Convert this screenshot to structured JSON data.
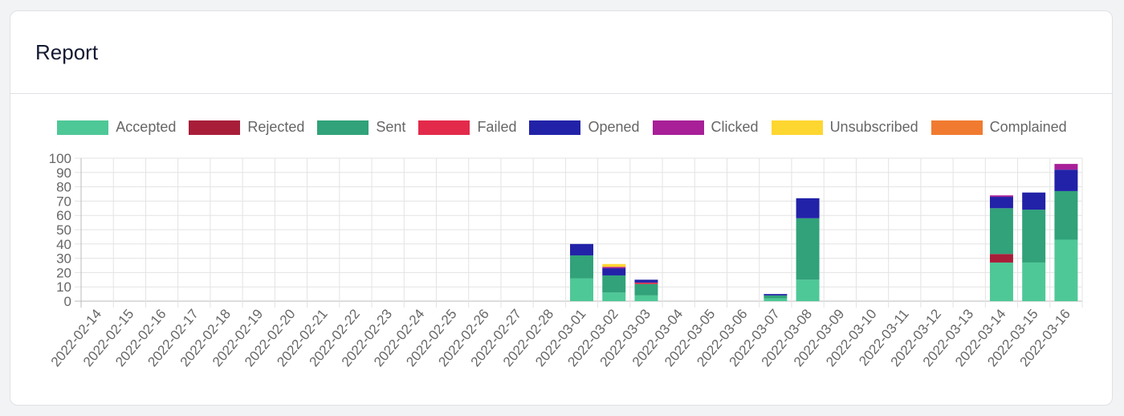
{
  "card": {
    "title": "Report"
  },
  "legend": [
    {
      "label": "Accepted",
      "color": "#4ec897"
    },
    {
      "label": "Rejected",
      "color": "#a81e39"
    },
    {
      "label": "Sent",
      "color": "#31a27a"
    },
    {
      "label": "Failed",
      "color": "#e32a4b"
    },
    {
      "label": "Opened",
      "color": "#2222a8"
    },
    {
      "label": "Clicked",
      "color": "#a81f98"
    },
    {
      "label": "Unsubscribed",
      "color": "#fed630"
    },
    {
      "label": "Complained",
      "color": "#f07b30"
    }
  ],
  "chart_data": {
    "type": "bar",
    "stacked": true,
    "title": "Report",
    "xlabel": "",
    "ylabel": "",
    "ylim": [
      0,
      100
    ],
    "yticks": [
      0,
      10,
      20,
      30,
      40,
      50,
      60,
      70,
      80,
      90,
      100
    ],
    "grid": true,
    "legend_position": "top",
    "categories": [
      "2022-02-14",
      "2022-02-15",
      "2022-02-16",
      "2022-02-17",
      "2022-02-18",
      "2022-02-19",
      "2022-02-20",
      "2022-02-21",
      "2022-02-22",
      "2022-02-23",
      "2022-02-24",
      "2022-02-25",
      "2022-02-26",
      "2022-02-27",
      "2022-02-28",
      "2022-03-01",
      "2022-03-02",
      "2022-03-03",
      "2022-03-04",
      "2022-03-05",
      "2022-03-06",
      "2022-03-07",
      "2022-03-08",
      "2022-03-09",
      "2022-03-10",
      "2022-03-11",
      "2022-03-12",
      "2022-03-13",
      "2022-03-14",
      "2022-03-15",
      "2022-03-16"
    ],
    "series": [
      {
        "name": "Accepted",
        "color": "#4ec897",
        "values": [
          0,
          0,
          0,
          0,
          0,
          0,
          0,
          0,
          0,
          0,
          0,
          0,
          0,
          0,
          0,
          16,
          6,
          4,
          0,
          0,
          0,
          2,
          15,
          0,
          0,
          0,
          0,
          0,
          27,
          27,
          43
        ]
      },
      {
        "name": "Rejected",
        "color": "#a81e39",
        "values": [
          0,
          0,
          0,
          0,
          0,
          0,
          0,
          0,
          0,
          0,
          0,
          0,
          0,
          0,
          0,
          0,
          0,
          0,
          0,
          0,
          0,
          0,
          0,
          0,
          0,
          0,
          0,
          0,
          6,
          0,
          0
        ]
      },
      {
        "name": "Sent",
        "color": "#31a27a",
        "values": [
          0,
          0,
          0,
          0,
          0,
          0,
          0,
          0,
          0,
          0,
          0,
          0,
          0,
          0,
          0,
          16,
          12,
          8,
          0,
          0,
          0,
          2,
          43,
          0,
          0,
          0,
          0,
          0,
          32,
          37,
          34
        ]
      },
      {
        "name": "Failed",
        "color": "#e32a4b",
        "values": [
          0,
          0,
          0,
          0,
          0,
          0,
          0,
          0,
          0,
          0,
          0,
          0,
          0,
          0,
          0,
          0,
          0,
          1,
          0,
          0,
          0,
          0,
          0,
          0,
          0,
          0,
          0,
          0,
          0,
          0,
          0
        ]
      },
      {
        "name": "Opened",
        "color": "#2222a8",
        "values": [
          0,
          0,
          0,
          0,
          0,
          0,
          0,
          0,
          0,
          0,
          0,
          0,
          0,
          0,
          0,
          8,
          5,
          2,
          0,
          0,
          0,
          1,
          14,
          0,
          0,
          0,
          0,
          0,
          8,
          12,
          15
        ]
      },
      {
        "name": "Clicked",
        "color": "#a81f98",
        "values": [
          0,
          0,
          0,
          0,
          0,
          0,
          0,
          0,
          0,
          0,
          0,
          0,
          0,
          0,
          0,
          0,
          1,
          0,
          0,
          0,
          0,
          0,
          0,
          0,
          0,
          0,
          0,
          0,
          1,
          0,
          4
        ]
      },
      {
        "name": "Unsubscribed",
        "color": "#fed630",
        "values": [
          0,
          0,
          0,
          0,
          0,
          0,
          0,
          0,
          0,
          0,
          0,
          0,
          0,
          0,
          0,
          0,
          2,
          0,
          0,
          0,
          0,
          0,
          0,
          0,
          0,
          0,
          0,
          0,
          0,
          0,
          0
        ]
      },
      {
        "name": "Complained",
        "color": "#f07b30",
        "values": [
          0,
          0,
          0,
          0,
          0,
          0,
          0,
          0,
          0,
          0,
          0,
          0,
          0,
          0,
          0,
          0,
          0,
          0,
          0,
          0,
          0,
          0,
          0,
          0,
          0,
          0,
          0,
          0,
          0,
          0,
          0
        ]
      }
    ]
  }
}
